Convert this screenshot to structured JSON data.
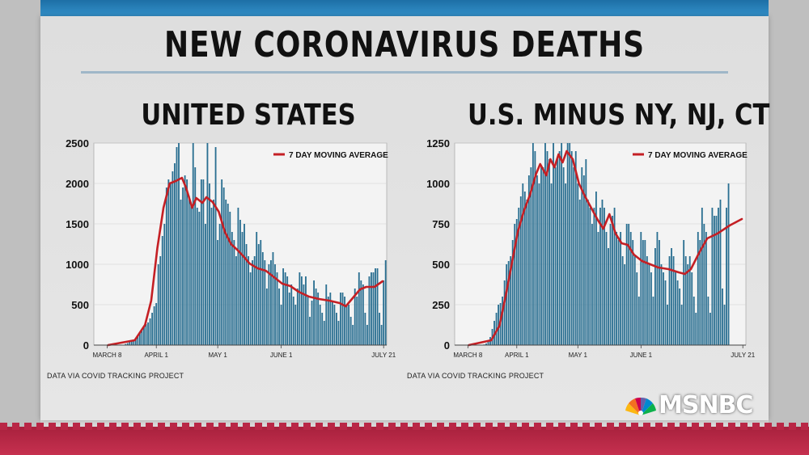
{
  "title": "NEW CORONAVIRUS DEATHS",
  "logo_text": "MSNBC",
  "colors": {
    "bar": "#2a6f91",
    "line": "#c41f24",
    "plot_bg": "#f3f3f3"
  },
  "chart_data": [
    {
      "type": "bar",
      "title": "UNITED STATES",
      "source": "DATA VIA COVID TRACKING PROJECT",
      "legend": {
        "label": "7 DAY MOVING AVERAGE",
        "placement": "top-right"
      },
      "ylim": [
        0,
        2500
      ],
      "yticks": [
        0,
        500,
        1000,
        1500,
        2000,
        2500
      ],
      "xticks": [
        {
          "label": "MARCH 8",
          "index": 6
        },
        {
          "label": "APRIL 1",
          "index": 30
        },
        {
          "label": "MAY 1",
          "index": 60
        },
        {
          "label": "JUNE 1",
          "index": 91
        },
        {
          "label": "JULY 21",
          "index": 141
        }
      ],
      "n_days": 143,
      "values": [
        0,
        0,
        0,
        0,
        0,
        0,
        0,
        0,
        0,
        0,
        0,
        0,
        0,
        2,
        5,
        14,
        25,
        40,
        55,
        65,
        90,
        120,
        150,
        190,
        230,
        260,
        280,
        330,
        400,
        480,
        520,
        1000,
        1100,
        1350,
        1500,
        1950,
        2050,
        2000,
        2150,
        2250,
        2450,
        2500,
        1800,
        1950,
        2100,
        2050,
        1850,
        1750,
        2500,
        2200,
        1700,
        1650,
        2050,
        2050,
        1500,
        2500,
        2000,
        1700,
        1800,
        2450,
        1300,
        1500,
        2050,
        1950,
        1800,
        1750,
        1650,
        1400,
        1300,
        1100,
        1700,
        1550,
        1400,
        1500,
        1250,
        1100,
        900,
        1050,
        1100,
        1400,
        1250,
        1300,
        1150,
        1050,
        700,
        1000,
        1050,
        1150,
        1000,
        900,
        700,
        500,
        950,
        900,
        850,
        650,
        750,
        600,
        500,
        700,
        900,
        850,
        750,
        850,
        600,
        350,
        550,
        800,
        700,
        650,
        500,
        400,
        300,
        750,
        600,
        650,
        550,
        500,
        400,
        300,
        650,
        650,
        600,
        500,
        500,
        350,
        250,
        700,
        600,
        900,
        800,
        750,
        400,
        250,
        850,
        900,
        900,
        950,
        950,
        400,
        250,
        800,
        1050
      ],
      "moving_average": [
        [
          7,
          0
        ],
        [
          20,
          60
        ],
        [
          25,
          250
        ],
        [
          28,
          550
        ],
        [
          31,
          1200
        ],
        [
          34,
          1700
        ],
        [
          37,
          2000
        ],
        [
          40,
          2030
        ],
        [
          43,
          2070
        ],
        [
          45,
          1950
        ],
        [
          48,
          1700
        ],
        [
          50,
          1820
        ],
        [
          53,
          1760
        ],
        [
          55,
          1830
        ],
        [
          58,
          1770
        ],
        [
          61,
          1650
        ],
        [
          64,
          1400
        ],
        [
          67,
          1250
        ],
        [
          70,
          1180
        ],
        [
          73,
          1100
        ],
        [
          76,
          1010
        ],
        [
          80,
          950
        ],
        [
          84,
          920
        ],
        [
          88,
          840
        ],
        [
          92,
          760
        ],
        [
          96,
          730
        ],
        [
          100,
          660
        ],
        [
          105,
          600
        ],
        [
          110,
          570
        ],
        [
          115,
          550
        ],
        [
          120,
          520
        ],
        [
          123,
          480
        ],
        [
          126,
          570
        ],
        [
          130,
          690
        ],
        [
          133,
          720
        ],
        [
          137,
          720
        ],
        [
          141,
          790
        ]
      ]
    },
    {
      "type": "bar",
      "title": "U.S. MINUS NY, NJ, CT",
      "source": "DATA VIA COVID TRACKING PROJECT",
      "legend": {
        "label": "7 DAY MOVING AVERAGE",
        "placement": "top-right"
      },
      "ylim": [
        0,
        1250
      ],
      "yticks": [
        0,
        250,
        500,
        750,
        1000,
        1250
      ],
      "xticks": [
        {
          "label": "MARCH 8",
          "index": 6
        },
        {
          "label": "APRIL 1",
          "index": 30
        },
        {
          "label": "MAY 1",
          "index": 60
        },
        {
          "label": "JUNE 1",
          "index": 91
        },
        {
          "label": "JULY 21",
          "index": 141
        }
      ],
      "n_days": 143,
      "values": [
        0,
        0,
        0,
        0,
        0,
        0,
        0,
        0,
        0,
        0,
        0,
        0,
        0,
        1,
        4,
        10,
        20,
        50,
        100,
        150,
        200,
        250,
        260,
        300,
        400,
        500,
        520,
        550,
        650,
        750,
        780,
        850,
        920,
        1000,
        950,
        900,
        1050,
        1100,
        1250,
        1200,
        1050,
        1000,
        1100,
        1100,
        1250,
        1200,
        1150,
        1000,
        1250,
        1100,
        1150,
        1200,
        1250,
        1100,
        1000,
        1250,
        1250,
        1200,
        1100,
        1200,
        1000,
        900,
        1100,
        1050,
        1150,
        900,
        850,
        750,
        850,
        950,
        700,
        850,
        900,
        850,
        700,
        600,
        750,
        800,
        850,
        700,
        650,
        700,
        550,
        500,
        750,
        750,
        700,
        650,
        550,
        450,
        300,
        700,
        650,
        650,
        550,
        500,
        450,
        300,
        600,
        700,
        650,
        500,
        450,
        400,
        250,
        550,
        600,
        550,
        450,
        400,
        350,
        250,
        650,
        550,
        500,
        550,
        450,
        300,
        200,
        700,
        650,
        850,
        750,
        700,
        300,
        200,
        850,
        800,
        800,
        850,
        900,
        350,
        250,
        850,
        1000
      ],
      "moving_average": [
        [
          7,
          0
        ],
        [
          18,
          30
        ],
        [
          22,
          120
        ],
        [
          25,
          300
        ],
        [
          28,
          500
        ],
        [
          31,
          700
        ],
        [
          34,
          830
        ],
        [
          37,
          930
        ],
        [
          40,
          1060
        ],
        [
          42,
          1120
        ],
        [
          45,
          1050
        ],
        [
          47,
          1150
        ],
        [
          49,
          1100
        ],
        [
          51,
          1180
        ],
        [
          53,
          1130
        ],
        [
          55,
          1200
        ],
        [
          58,
          1150
        ],
        [
          61,
          1000
        ],
        [
          64,
          920
        ],
        [
          67,
          850
        ],
        [
          70,
          780
        ],
        [
          73,
          720
        ],
        [
          76,
          810
        ],
        [
          79,
          690
        ],
        [
          82,
          630
        ],
        [
          85,
          620
        ],
        [
          88,
          560
        ],
        [
          92,
          520
        ],
        [
          96,
          500
        ],
        [
          100,
          480
        ],
        [
          105,
          470
        ],
        [
          110,
          450
        ],
        [
          113,
          440
        ],
        [
          116,
          470
        ],
        [
          120,
          570
        ],
        [
          124,
          660
        ],
        [
          129,
          690
        ],
        [
          135,
          740
        ],
        [
          141,
          780
        ]
      ]
    }
  ]
}
